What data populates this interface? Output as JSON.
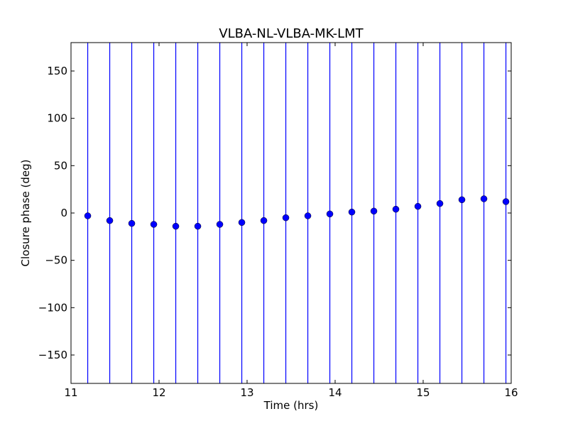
{
  "chart_data": {
    "type": "scatter",
    "title": "VLBA-NL-VLBA-MK-LMT",
    "xlabel": "Time (hrs)",
    "ylabel": "Closure phase (deg)",
    "xlim": [
      11,
      16
    ],
    "ylim": [
      -180,
      180
    ],
    "xticks": [
      11,
      12,
      13,
      14,
      15,
      16
    ],
    "xtick_labels": [
      "11",
      "12",
      "13",
      "14",
      "15",
      "16"
    ],
    "yticks": [
      150,
      100,
      50,
      0,
      -50,
      -100,
      -150
    ],
    "ytick_labels": [
      "150",
      "100",
      "50",
      "0",
      "−50",
      "−100",
      "−150"
    ],
    "grid": false,
    "marker_color": "#0000ff",
    "errorbar_color": "#0000ff",
    "errorbars": "span full y-range",
    "series": [
      {
        "x": [
          11.19,
          11.44,
          11.69,
          11.94,
          12.19,
          12.44,
          12.69,
          12.94,
          13.19,
          13.44,
          13.69,
          13.94,
          14.19,
          14.44,
          14.69,
          14.94,
          15.19,
          15.44,
          15.69,
          15.94
        ],
        "y": [
          -3,
          -8,
          -11,
          -12,
          -14,
          -14,
          -12,
          -10,
          -8,
          -5,
          -3,
          -1,
          1,
          2,
          4,
          7,
          10,
          14,
          15,
          12
        ]
      }
    ]
  }
}
